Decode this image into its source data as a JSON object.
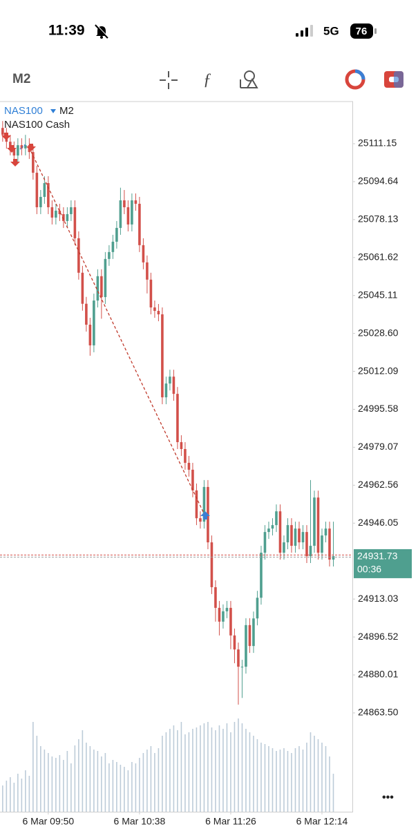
{
  "ui": {
    "time": "11:39",
    "network": "5G",
    "battery": "76",
    "timeframe": "M2",
    "more": "•••"
  },
  "chart_data": {
    "type": "candlestick",
    "symbol": "NAS100",
    "timeframe": "M2",
    "description": "NAS100 Cash",
    "bull_color": "#4f9f8f",
    "bear_color": "#d2504a",
    "volume_color": "#bccbd8",
    "ylim": [
      24820.5,
      25129.18
    ],
    "yticks": [
      25111.15,
      25094.64,
      25078.13,
      25061.62,
      25045.11,
      {
        "value": 25028.6,
        "label": "25028.60"
      },
      25012.09,
      24995.58,
      24979.07,
      24962.56,
      24946.05,
      24913.03,
      24896.52,
      24880.01,
      {
        "value": 24863.5,
        "label": "24863.50"
      }
    ],
    "xlim": [
      -0.7,
      92
    ],
    "xticks": [
      {
        "value": 12,
        "label": "6 Mar 09:50"
      },
      {
        "value": 36,
        "label": "6 Mar 10:38"
      },
      {
        "value": 60,
        "label": "6 Mar 11:26"
      },
      {
        "value": 84,
        "label": "6 Mar 12:14"
      }
    ],
    "current_price": 24931.73,
    "timer": "00:36",
    "candles": [
      [
        25118.0,
        25121.0,
        25112.0,
        25115.0
      ],
      [
        25115.0,
        25118.0,
        25109.0,
        25112.0
      ],
      [
        25112.0,
        25115.0,
        25106.1,
        25109.1
      ],
      [
        25109.1,
        25112.1,
        25103.0,
        25106.0
      ],
      [
        25106.0,
        25113.5,
        25103.0,
        25110.5
      ],
      [
        25110.5,
        25113.5,
        25106.1,
        25109.1
      ],
      [
        25109.1,
        25115.0,
        25106.1,
        25110.5
      ],
      [
        25110.5,
        25113.5,
        25104.5,
        25107.5
      ],
      [
        25107.5,
        25110.5,
        25095.5,
        25098.5
      ],
      [
        25098.5,
        25101.5,
        25080.5,
        25083.5
      ],
      [
        25083.5,
        25091.0,
        25080.5,
        25088.0
      ],
      [
        25088.0,
        25097.0,
        25085.0,
        25094.0
      ],
      [
        25094.0,
        25097.0,
        25080.5,
        25083.5
      ],
      [
        25083.5,
        25086.5,
        25076.0,
        25079.0
      ],
      [
        25079.0,
        25085.0,
        25076.0,
        25082.0
      ],
      [
        25082.0,
        25085.0,
        25077.5,
        25080.5
      ],
      [
        25080.5,
        25083.5,
        25074.5,
        25077.5
      ],
      [
        25077.5,
        25083.5,
        25074.5,
        25080.5
      ],
      [
        25080.5,
        25086.5,
        25077.5,
        25083.5
      ],
      [
        25083.5,
        25086.5,
        25067.0,
        25070.0
      ],
      [
        25070.0,
        25073.0,
        25052.0,
        25055.0
      ],
      [
        25055.0,
        25058.0,
        25038.5,
        25041.5
      ],
      [
        25041.5,
        25044.5,
        25029.4,
        25032.4
      ],
      [
        25032.4,
        25035.4,
        25018.9,
        25023.4
      ],
      [
        25023.4,
        25045.9,
        25020.4,
        25042.9
      ],
      [
        25042.9,
        25056.5,
        25039.9,
        25053.5
      ],
      [
        25053.5,
        25056.5,
        25035.0,
        25044.4
      ],
      [
        25044.4,
        25064.0,
        25041.4,
        25061.0
      ],
      [
        25061.0,
        25067.0,
        25058.0,
        25064.0
      ],
      [
        25064.0,
        25071.5,
        25061.0,
        25068.5
      ],
      [
        25068.5,
        25077.5,
        25065.5,
        25074.5
      ],
      [
        25074.5,
        25092.0,
        25071.5,
        25086.5
      ],
      [
        25086.5,
        25091.0,
        25080.5,
        25083.5
      ],
      [
        25083.5,
        25086.5,
        25073.0,
        25076.0
      ],
      [
        25076.0,
        25089.5,
        25073.0,
        25086.5
      ],
      [
        25086.5,
        25089.5,
        25082.0,
        25085.0
      ],
      [
        25085.0,
        25088.0,
        25064.0,
        25067.0
      ],
      [
        25067.0,
        25070.0,
        25056.5,
        25059.5
      ],
      [
        25059.5,
        25062.5,
        25046.0,
        25052.0
      ],
      [
        25052.0,
        25055.0,
        25036.9,
        25039.9
      ],
      [
        25039.9,
        25042.9,
        25035.4,
        25038.4
      ],
      [
        25038.4,
        25041.4,
        25033.9,
        25036.9
      ],
      [
        25036.9,
        25039.9,
        24997.8,
        25000.8
      ],
      [
        25000.8,
        25009.8,
        24997.8,
        25006.8
      ],
      [
        25006.8,
        25012.8,
        25003.8,
        25009.8
      ],
      [
        25009.8,
        25012.8,
        24999.3,
        25002.3
      ],
      [
        25002.3,
        25005.3,
        24978.3,
        24981.3
      ],
      [
        24981.3,
        24984.3,
        24975.3,
        24978.3
      ],
      [
        24978.3,
        24981.3,
        24969.3,
        24972.3
      ],
      [
        24972.3,
        24975.3,
        24966.3,
        24969.3
      ],
      [
        24969.3,
        24972.3,
        24957.3,
        24960.3
      ],
      [
        24960.3,
        24963.3,
        24945.2,
        24948.2
      ],
      [
        24948.2,
        24951.2,
        24943.7,
        24946.7
      ],
      [
        24946.7,
        24964.8,
        24943.7,
        24961.8
      ],
      [
        24961.8,
        24964.8,
        24934.7,
        24937.7
      ],
      [
        24937.7,
        24940.7,
        24915.2,
        24918.2
      ],
      [
        24918.2,
        24921.2,
        24903.2,
        24909.2
      ],
      [
        24909.2,
        24912.2,
        24897.2,
        24903.2
      ],
      [
        24903.2,
        24910.7,
        24900.2,
        24907.7
      ],
      [
        24907.7,
        24912.2,
        24904.7,
        24909.2
      ],
      [
        24909.2,
        24912.2,
        24891.2,
        24897.2
      ],
      [
        24897.2,
        24900.2,
        24885.1,
        24891.1
      ],
      [
        24891.1,
        24894.1,
        24867.1,
        24883.6
      ],
      [
        24883.6,
        24886.6,
        24870.0,
        24883.6
      ],
      [
        24883.6,
        24904.7,
        24880.6,
        24901.7
      ],
      [
        24901.7,
        24904.7,
        24889.6,
        24892.6
      ],
      [
        24892.6,
        24907.6,
        24889.6,
        24904.6
      ],
      [
        24904.6,
        24916.6,
        24901.6,
        24913.6
      ],
      [
        24913.6,
        24936.2,
        24910.6,
        24933.2
      ],
      [
        24933.2,
        24945.2,
        24930.2,
        24942.2
      ],
      [
        24942.2,
        24946.7,
        24939.2,
        24943.7
      ],
      [
        24943.7,
        24948.2,
        24940.7,
        24945.2
      ],
      [
        24945.2,
        24954.2,
        24942.2,
        24951.2
      ],
      [
        24951.2,
        24954.2,
        24930.2,
        24933.2
      ],
      [
        24933.2,
        24940.7,
        24930.2,
        24937.7
      ],
      [
        24937.7,
        24948.2,
        24934.7,
        24945.2
      ],
      [
        24945.2,
        24948.2,
        24933.2,
        24936.2
      ],
      [
        24936.2,
        24946.7,
        24933.2,
        24943.7
      ],
      [
        24943.7,
        24946.7,
        24934.7,
        24937.7
      ],
      [
        24937.7,
        24945.2,
        24934.7,
        24942.2
      ],
      [
        24942.2,
        24945.2,
        24928.7,
        24931.7
      ],
      [
        24931.7,
        24964.8,
        24928.7,
        24936.2
      ],
      [
        24936.2,
        24960.2,
        24933.2,
        24957.2
      ],
      [
        24957.2,
        24960.2,
        24930.2,
        24933.2
      ],
      [
        24933.2,
        24943.7,
        24930.2,
        24940.7
      ],
      [
        24940.7,
        24946.7,
        24937.7,
        24943.7
      ],
      [
        24943.7,
        24946.7,
        24927.2,
        24930.2
      ],
      [
        24930.2,
        24946.7,
        24927.2,
        24931.73
      ]
    ],
    "volumes": [
      38,
      45,
      50,
      42,
      55,
      48,
      60,
      52,
      130,
      110,
      95,
      90,
      85,
      80,
      78,
      82,
      75,
      88,
      70,
      96,
      105,
      118,
      100,
      95,
      90,
      88,
      80,
      85,
      70,
      75,
      72,
      68,
      65,
      60,
      72,
      70,
      78,
      85,
      90,
      95,
      85,
      92,
      110,
      115,
      120,
      125,
      118,
      130,
      112,
      115,
      120,
      122,
      125,
      128,
      130,
      122,
      118,
      125,
      120,
      128,
      115,
      130,
      135,
      128,
      120,
      115,
      110,
      105,
      100,
      98,
      95,
      92,
      88,
      90,
      92,
      88,
      85,
      92,
      95,
      90,
      100,
      115,
      110,
      105,
      100,
      95,
      80,
      55
    ]
  }
}
